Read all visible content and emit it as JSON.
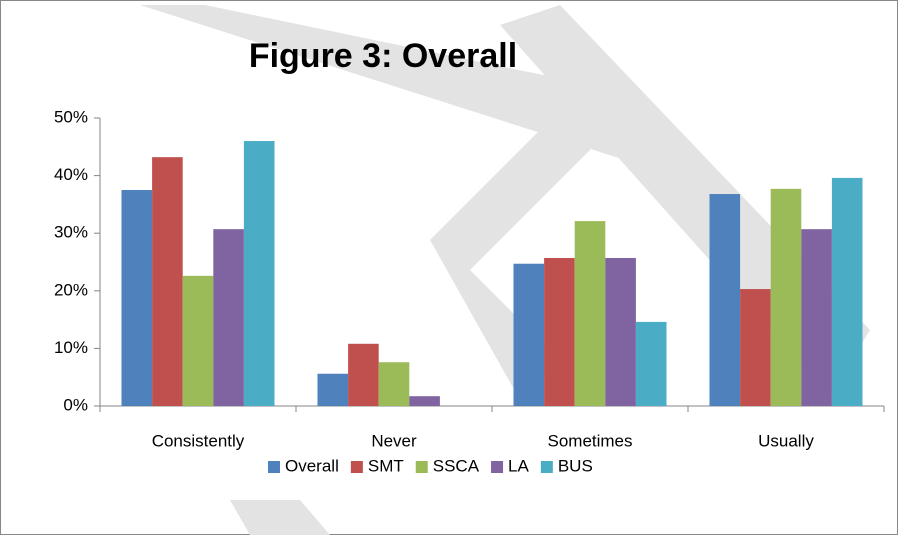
{
  "chart_data": {
    "type": "bar",
    "title": "Figure 3:  Overall",
    "categories": [
      "Consistently",
      "Never",
      "Sometimes",
      "Usually"
    ],
    "series": [
      {
        "name": "Overall",
        "color": "#4f81bd",
        "values": [
          37.5,
          5.6,
          24.7,
          36.8
        ]
      },
      {
        "name": "SMT",
        "color": "#c0504d",
        "values": [
          43.2,
          10.8,
          25.7,
          20.3
        ]
      },
      {
        "name": "SSCA",
        "color": "#9bbb59",
        "values": [
          22.6,
          7.6,
          32.1,
          37.7
        ]
      },
      {
        "name": "LA",
        "color": "#8064a2",
        "values": [
          30.7,
          1.7,
          25.7,
          30.7
        ]
      },
      {
        "name": "BUS",
        "color": "#4bacc6",
        "values": [
          46.0,
          0,
          14.6,
          39.6
        ]
      }
    ],
    "ylim": [
      0,
      50
    ],
    "yticks": [
      {
        "value": 0,
        "label": "0%"
      },
      {
        "value": 10,
        "label": "10%"
      },
      {
        "value": 20,
        "label": "20%"
      },
      {
        "value": 30,
        "label": "30%"
      },
      {
        "value": 40,
        "label": "40%"
      },
      {
        "value": 50,
        "label": "50%"
      }
    ],
    "grid": false,
    "legend": "bottom"
  }
}
